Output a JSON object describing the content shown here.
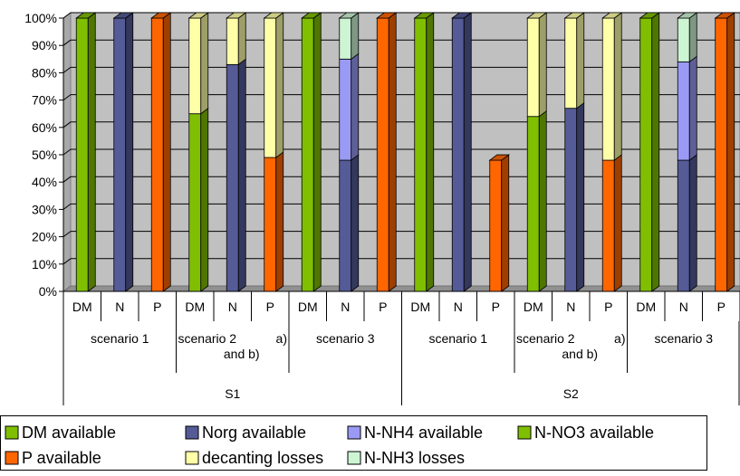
{
  "chart_data": {
    "type": "bar",
    "stacked": true,
    "percent": true,
    "y_ticks": [
      "0%",
      "10%",
      "20%",
      "30%",
      "40%",
      "50%",
      "60%",
      "70%",
      "80%",
      "90%",
      "100%"
    ],
    "ylim": [
      0,
      100
    ],
    "grid": true,
    "legend_position": "bottom",
    "x_level1": [
      "DM",
      "N",
      "P",
      "DM",
      "N",
      "P",
      "DM",
      "N",
      "P",
      "DM",
      "N",
      "P",
      "DM",
      "N",
      "P",
      "DM",
      "N",
      "P"
    ],
    "x_level2": [
      {
        "label": "scenario 1",
        "span": [
          0,
          2
        ]
      },
      {
        "label": "scenario 2 and b)",
        "span": [
          3,
          5
        ],
        "extra": "a)"
      },
      {
        "label": "scenario 3",
        "span": [
          6,
          8
        ]
      },
      {
        "label": "scenario 1",
        "span": [
          9,
          11
        ]
      },
      {
        "label": "scenario 2 and b)",
        "span": [
          12,
          14
        ],
        "extra": "a)"
      },
      {
        "label": "scenario 3",
        "span": [
          15,
          17
        ]
      }
    ],
    "x_level3": [
      {
        "label": "S1",
        "span": [
          0,
          8
        ]
      },
      {
        "label": "S2",
        "span": [
          9,
          17
        ]
      }
    ],
    "series": [
      {
        "name": "DM available",
        "color": "#7fbf00",
        "values": [
          100,
          0,
          0,
          65,
          0,
          0,
          100,
          0,
          0,
          100,
          0,
          0,
          64,
          0,
          0,
          100,
          0,
          0
        ]
      },
      {
        "name": "Norg available",
        "color": "#545b96",
        "values": [
          0,
          100,
          0,
          0,
          83,
          0,
          0,
          48,
          0,
          0,
          100,
          0,
          0,
          67,
          0,
          0,
          48,
          0
        ]
      },
      {
        "name": "N-NH4 available",
        "color": "#9a9af5",
        "values": [
          0,
          0,
          0,
          0,
          0,
          0,
          0,
          37,
          0,
          0,
          0,
          0,
          0,
          0,
          0,
          0,
          36,
          0
        ]
      },
      {
        "name": "N-NO3 available",
        "color": "#7fbf00",
        "values": [
          0,
          0,
          0,
          0,
          0,
          0,
          0,
          0,
          0,
          0,
          0,
          0,
          0,
          0,
          0,
          0,
          0,
          0
        ]
      },
      {
        "name": "P available",
        "color": "#ff6600",
        "values": [
          0,
          0,
          100,
          0,
          0,
          49,
          0,
          0,
          100,
          0,
          0,
          48,
          0,
          0,
          48,
          0,
          0,
          100
        ]
      },
      {
        "name": "decanting losses",
        "color": "#ffffa8",
        "values": [
          0,
          0,
          0,
          35,
          17,
          51,
          0,
          0,
          0,
          0,
          0,
          0,
          36,
          33,
          52,
          0,
          0,
          0
        ]
      },
      {
        "name": "N-NH3 losses",
        "color": "#cdf5d4",
        "values": [
          0,
          0,
          0,
          0,
          0,
          0,
          0,
          15,
          0,
          0,
          0,
          0,
          0,
          0,
          0,
          0,
          16,
          0
        ]
      }
    ]
  }
}
